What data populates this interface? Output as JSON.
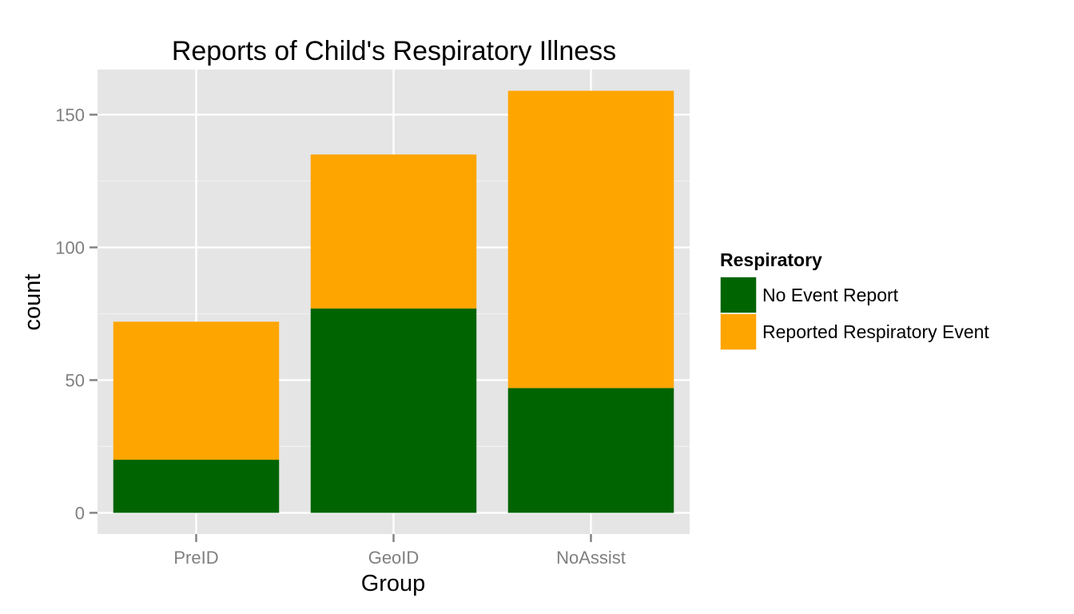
{
  "chart_data": {
    "type": "bar",
    "stacked": true,
    "title": "Reports of Child's Respiratory Illness",
    "xlabel": "Group",
    "ylabel": "count",
    "categories": [
      "PreID",
      "GeoID",
      "NoAssist"
    ],
    "series": [
      {
        "name": "No Event Report",
        "color": "#006400",
        "values": [
          20,
          77,
          47
        ]
      },
      {
        "name": "Reported Respiratory Event",
        "color": "#FFA500",
        "values": [
          52,
          58,
          112
        ]
      }
    ],
    "ylim": [
      -8,
      167
    ],
    "yticks": [
      0,
      50,
      100,
      150
    ],
    "ytick_labels": [
      "0",
      "50",
      "100",
      "150"
    ],
    "grid": true,
    "legend": {
      "title": "Respiratory",
      "placement": "right"
    },
    "colors": {
      "panel_background": "#E5E5E5",
      "grid_major": "#FFFFFF",
      "grid_minor": "#F2F2F2",
      "tick_text": "#7F7F7F"
    }
  }
}
